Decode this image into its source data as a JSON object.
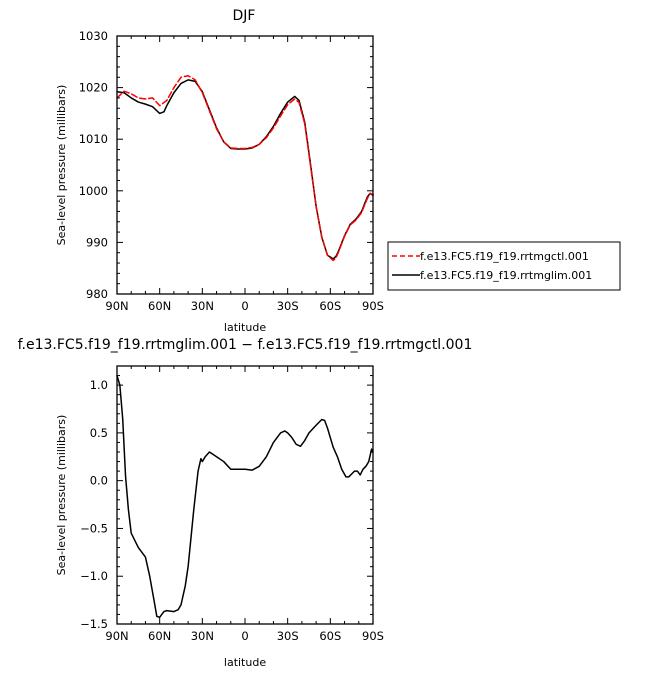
{
  "chart_data": [
    {
      "type": "line",
      "title": "DJF",
      "xlabel": "latitude",
      "ylabel": "Sea-level pressure (millibars)",
      "xlim": [
        90,
        -90
      ],
      "ylim": [
        980,
        1030
      ],
      "x_ticks": [
        90,
        60,
        30,
        0,
        -30,
        -60,
        -90
      ],
      "x_tick_labels": [
        "90N",
        "60N",
        "30N",
        "0",
        "30S",
        "60S",
        "90S"
      ],
      "y_ticks": [
        980,
        990,
        1000,
        1010,
        1020,
        1030
      ],
      "y_tick_labels": [
        "980",
        "990",
        "1000",
        "1010",
        "1020",
        "1030"
      ],
      "grid": false,
      "legend_position": "right, outside plot",
      "series": [
        {
          "name": "f.e13.FC5.f19_f19.rrtmgctl.001",
          "color": "#ff0000",
          "dash": "dashed",
          "x": [
            90,
            85,
            80,
            75,
            70,
            65,
            60,
            55,
            50,
            45,
            40,
            35,
            30,
            25,
            20,
            15,
            10,
            5,
            0,
            -5,
            -10,
            -15,
            -20,
            -25,
            -30,
            -35,
            -38,
            -42,
            -46,
            -50,
            -54,
            -58,
            -62,
            -64,
            -66,
            -70,
            -74,
            -78,
            -82,
            -86,
            -88,
            -90
          ],
          "y": [
            1018.0,
            1019.3,
            1018.8,
            1018.0,
            1017.8,
            1018.0,
            1016.5,
            1017.5,
            1020.0,
            1022.0,
            1022.3,
            1021.5,
            1019.0,
            1015.5,
            1012.0,
            1009.5,
            1008.3,
            1008.2,
            1008.2,
            1008.4,
            1009.0,
            1010.3,
            1012.2,
            1014.5,
            1016.7,
            1017.8,
            1017.1,
            1013.0,
            1005.0,
            997.0,
            991.0,
            987.5,
            986.5,
            987.0,
            988.3,
            991.2,
            993.4,
            994.3,
            995.8,
            998.5,
            999.5,
            999.3
          ]
        },
        {
          "name": "f.e13.FC5.f19_f19.rrtmglim.001",
          "color": "#000000",
          "dash": "solid",
          "x": [
            90,
            85,
            80,
            75,
            70,
            65,
            60,
            57,
            55,
            50,
            45,
            40,
            35,
            30,
            25,
            20,
            15,
            10,
            5,
            0,
            -5,
            -10,
            -15,
            -20,
            -25,
            -30,
            -35,
            -38,
            -42,
            -46,
            -50,
            -54,
            -58,
            -62,
            -64,
            -66,
            -70,
            -74,
            -78,
            -82,
            -86,
            -88,
            -90
          ],
          "y": [
            1019.2,
            1019.0,
            1018.0,
            1017.2,
            1016.8,
            1016.3,
            1015.0,
            1015.3,
            1016.5,
            1019.0,
            1020.8,
            1021.5,
            1021.2,
            1019.2,
            1015.7,
            1012.2,
            1009.5,
            1008.2,
            1008.1,
            1008.1,
            1008.3,
            1009.0,
            1010.5,
            1012.5,
            1015.0,
            1017.2,
            1018.3,
            1017.5,
            1013.3,
            1005.3,
            997.0,
            991.0,
            987.5,
            986.8,
            987.3,
            988.5,
            991.3,
            993.5,
            994.5,
            996.0,
            998.8,
            999.5,
            999.1
          ]
        }
      ]
    },
    {
      "type": "line",
      "title": "f.e13.FC5.f19_f19.rrtmglim.001 − f.e13.FC5.f19_f19.rrtmgctl.001",
      "xlabel": "latitude",
      "ylabel": "Sea-level pressure (millibars)",
      "xlim": [
        90,
        -90
      ],
      "ylim": [
        -1.5,
        1.2
      ],
      "x_ticks": [
        90,
        60,
        30,
        0,
        -30,
        -60,
        -90
      ],
      "x_tick_labels": [
        "90N",
        "60N",
        "30N",
        "0",
        "30S",
        "60S",
        "90S"
      ],
      "y_ticks": [
        -1.5,
        -1.0,
        -0.5,
        0.0,
        0.5,
        1.0
      ],
      "y_tick_labels": [
        "−1.5",
        "−1.0",
        "−0.5",
        "0.0",
        "0.5",
        "1.0"
      ],
      "grid": false,
      "series": [
        {
          "color": "#000000",
          "dash": "solid",
          "x": [
            90,
            88,
            86,
            84,
            82,
            80,
            75,
            70,
            67,
            64,
            62,
            60,
            57,
            55,
            50,
            47,
            45,
            42,
            40,
            38,
            36,
            33,
            31,
            30,
            28,
            25,
            23,
            20,
            15,
            10,
            5,
            0,
            -5,
            -10,
            -15,
            -20,
            -25,
            -28,
            -30,
            -33,
            -36,
            -39,
            -42,
            -45,
            -50,
            -54,
            -56,
            -58,
            -60,
            -62,
            -65,
            -68,
            -71,
            -73,
            -75,
            -77,
            -79,
            -81,
            -83,
            -85,
            -87,
            -89,
            -90
          ],
          "y": [
            1.1,
            1.0,
            0.65,
            0.05,
            -0.3,
            -0.55,
            -0.7,
            -0.8,
            -1.0,
            -1.25,
            -1.42,
            -1.43,
            -1.37,
            -1.36,
            -1.37,
            -1.35,
            -1.3,
            -1.1,
            -0.9,
            -0.6,
            -0.3,
            0.1,
            0.23,
            0.2,
            0.25,
            0.3,
            0.28,
            0.25,
            0.2,
            0.12,
            0.12,
            0.12,
            0.11,
            0.15,
            0.25,
            0.4,
            0.5,
            0.52,
            0.5,
            0.45,
            0.38,
            0.36,
            0.42,
            0.5,
            0.58,
            0.64,
            0.63,
            0.55,
            0.45,
            0.35,
            0.25,
            0.12,
            0.04,
            0.04,
            0.07,
            0.1,
            0.1,
            0.06,
            0.12,
            0.15,
            0.2,
            0.33,
            0.3
          ]
        }
      ]
    }
  ]
}
